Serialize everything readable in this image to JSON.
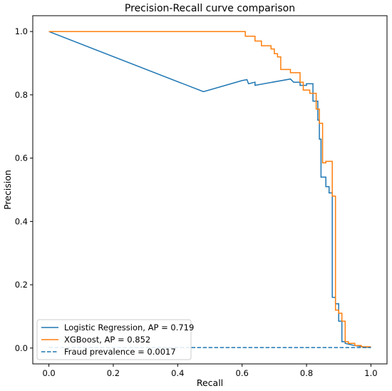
{
  "chart_data": {
    "type": "line",
    "title": "Precision-Recall curve comparison",
    "xlabel": "Recall",
    "ylabel": "Precision",
    "xlim": [
      -0.05,
      1.05
    ],
    "ylim": [
      -0.05,
      1.05
    ],
    "xticks": [
      0.0,
      0.2,
      0.4,
      0.6,
      0.8,
      1.0
    ],
    "yticks": [
      0.0,
      0.2,
      0.4,
      0.6,
      0.8,
      1.0
    ],
    "xtick_labels": [
      "0.0",
      "0.2",
      "0.4",
      "0.6",
      "0.8",
      "1.0"
    ],
    "ytick_labels": [
      "0.0",
      "0.2",
      "0.4",
      "0.6",
      "0.8",
      "1.0"
    ],
    "grid": false,
    "legend_position": "lower-left",
    "series": [
      {
        "name": "Logistic Regression, AP = 0.719",
        "color": "#1f77b4",
        "style": "solid",
        "x": [
          0.0,
          0.48,
          0.6,
          0.615,
          0.62,
          0.64,
          0.64,
          0.75,
          0.76,
          0.78,
          0.78,
          0.8,
          0.8,
          0.82,
          0.82,
          0.835,
          0.835,
          0.84,
          0.84,
          0.845,
          0.845,
          0.85,
          0.85,
          0.86,
          0.86,
          0.87,
          0.87,
          0.88,
          0.88,
          0.89,
          0.89,
          0.9,
          0.9,
          0.91,
          0.91,
          0.92,
          0.92,
          0.94,
          0.95,
          0.97,
          0.98,
          1.0
        ],
        "y": [
          1.0,
          0.81,
          0.845,
          0.848,
          0.835,
          0.84,
          0.83,
          0.85,
          0.84,
          0.84,
          0.83,
          0.83,
          0.835,
          0.835,
          0.78,
          0.78,
          0.72,
          0.72,
          0.66,
          0.66,
          0.54,
          0.54,
          0.54,
          0.54,
          0.51,
          0.51,
          0.49,
          0.49,
          0.16,
          0.16,
          0.14,
          0.14,
          0.085,
          0.085,
          0.02,
          0.02,
          0.015,
          0.01,
          0.008,
          0.005,
          0.003,
          0.002
        ]
      },
      {
        "name": "XGBoost, AP = 0.852",
        "color": "#ff7f0e",
        "style": "solid",
        "x": [
          0.0,
          0.61,
          0.61,
          0.64,
          0.64,
          0.66,
          0.66,
          0.69,
          0.69,
          0.7,
          0.7,
          0.71,
          0.71,
          0.72,
          0.72,
          0.75,
          0.75,
          0.78,
          0.78,
          0.79,
          0.79,
          0.81,
          0.81,
          0.83,
          0.83,
          0.84,
          0.84,
          0.85,
          0.85,
          0.86,
          0.86,
          0.88,
          0.88,
          0.89,
          0.89,
          0.9,
          0.9,
          0.91,
          0.91,
          0.92,
          0.92,
          0.93,
          0.93,
          0.95,
          0.95,
          0.97,
          0.97,
          1.0
        ],
        "y": [
          1.0,
          1.0,
          0.985,
          0.985,
          0.97,
          0.97,
          0.955,
          0.955,
          0.945,
          0.945,
          0.93,
          0.93,
          0.92,
          0.92,
          0.88,
          0.88,
          0.87,
          0.87,
          0.84,
          0.84,
          0.815,
          0.815,
          0.805,
          0.805,
          0.755,
          0.755,
          0.71,
          0.71,
          0.585,
          0.585,
          0.59,
          0.59,
          0.48,
          0.48,
          0.12,
          0.12,
          0.11,
          0.11,
          0.085,
          0.085,
          0.02,
          0.02,
          0.015,
          0.015,
          0.008,
          0.008,
          0.004,
          0.004
        ]
      },
      {
        "name": "Fraud prevalence = 0.0017",
        "color": "#1f77b4",
        "style": "dashed",
        "x": [
          0.0,
          1.0
        ],
        "y": [
          0.0017,
          0.0017
        ]
      }
    ]
  }
}
